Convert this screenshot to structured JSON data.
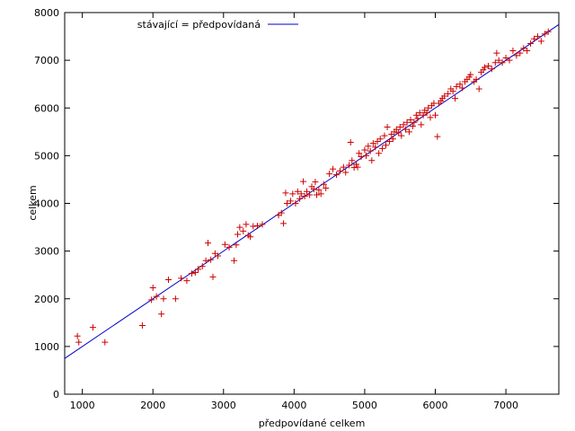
{
  "chart_data": {
    "type": "scatter",
    "title": "",
    "xlabel": "předpovídané celkem",
    "ylabel": "celkem",
    "xlim": [
      750,
      7750
    ],
    "ylim": [
      0,
      8000
    ],
    "x_ticks": [
      1000,
      2000,
      3000,
      4000,
      5000,
      6000,
      7000
    ],
    "y_ticks": [
      0,
      1000,
      2000,
      3000,
      4000,
      5000,
      6000,
      7000,
      8000
    ],
    "grid": false,
    "legend_position": "top-left",
    "colors": {
      "points": "#cc0000",
      "line": "#0000cc"
    },
    "line": {
      "name": "stávající = předpovídaná",
      "x": [
        750,
        7750
      ],
      "y": [
        750,
        7750
      ]
    },
    "points": [
      [
        930,
        1220
      ],
      [
        950,
        1090
      ],
      [
        1150,
        1400
      ],
      [
        1320,
        1090
      ],
      [
        1850,
        1440
      ],
      [
        1980,
        1980
      ],
      [
        2000,
        2230
      ],
      [
        2050,
        2050
      ],
      [
        2120,
        1680
      ],
      [
        2150,
        2000
      ],
      [
        2220,
        2400
      ],
      [
        2320,
        2000
      ],
      [
        2400,
        2430
      ],
      [
        2480,
        2380
      ],
      [
        2550,
        2530
      ],
      [
        2600,
        2550
      ],
      [
        2640,
        2620
      ],
      [
        2700,
        2680
      ],
      [
        2750,
        2800
      ],
      [
        2780,
        3170
      ],
      [
        2820,
        2820
      ],
      [
        2850,
        2460
      ],
      [
        2880,
        2950
      ],
      [
        2920,
        2900
      ],
      [
        3020,
        3140
      ],
      [
        3080,
        3080
      ],
      [
        3150,
        2800
      ],
      [
        3180,
        3130
      ],
      [
        3200,
        3350
      ],
      [
        3230,
        3500
      ],
      [
        3280,
        3420
      ],
      [
        3320,
        3560
      ],
      [
        3350,
        3330
      ],
      [
        3380,
        3300
      ],
      [
        3420,
        3520
      ],
      [
        3480,
        3530
      ],
      [
        3550,
        3560
      ],
      [
        3780,
        3750
      ],
      [
        3820,
        3800
      ],
      [
        3850,
        3580
      ],
      [
        3880,
        4220
      ],
      [
        3900,
        4000
      ],
      [
        3950,
        4050
      ],
      [
        3980,
        4200
      ],
      [
        4020,
        4000
      ],
      [
        4050,
        4250
      ],
      [
        4080,
        4100
      ],
      [
        4100,
        4200
      ],
      [
        4130,
        4460
      ],
      [
        4150,
        4150
      ],
      [
        4180,
        4250
      ],
      [
        4220,
        4180
      ],
      [
        4250,
        4350
      ],
      [
        4280,
        4300
      ],
      [
        4300,
        4450
      ],
      [
        4320,
        4180
      ],
      [
        4350,
        4280
      ],
      [
        4380,
        4200
      ],
      [
        4420,
        4400
      ],
      [
        4450,
        4320
      ],
      [
        4500,
        4620
      ],
      [
        4550,
        4720
      ],
      [
        4600,
        4600
      ],
      [
        4650,
        4680
      ],
      [
        4700,
        4760
      ],
      [
        4730,
        4650
      ],
      [
        4780,
        4800
      ],
      [
        4800,
        5280
      ],
      [
        4820,
        4900
      ],
      [
        4850,
        4750
      ],
      [
        4880,
        4820
      ],
      [
        4900,
        4760
      ],
      [
        4920,
        5050
      ],
      [
        4950,
        4980
      ],
      [
        5000,
        5120
      ],
      [
        5020,
        5000
      ],
      [
        5050,
        5200
      ],
      [
        5080,
        5100
      ],
      [
        5100,
        4900
      ],
      [
        5120,
        5260
      ],
      [
        5150,
        5180
      ],
      [
        5180,
        5300
      ],
      [
        5200,
        5050
      ],
      [
        5220,
        5350
      ],
      [
        5250,
        5150
      ],
      [
        5280,
        5420
      ],
      [
        5300,
        5220
      ],
      [
        5320,
        5600
      ],
      [
        5350,
        5300
      ],
      [
        5380,
        5450
      ],
      [
        5400,
        5350
      ],
      [
        5420,
        5500
      ],
      [
        5450,
        5550
      ],
      [
        5480,
        5480
      ],
      [
        5500,
        5600
      ],
      [
        5520,
        5420
      ],
      [
        5550,
        5650
      ],
      [
        5580,
        5550
      ],
      [
        5600,
        5700
      ],
      [
        5630,
        5500
      ],
      [
        5650,
        5750
      ],
      [
        5680,
        5620
      ],
      [
        5700,
        5700
      ],
      [
        5730,
        5850
      ],
      [
        5750,
        5780
      ],
      [
        5780,
        5900
      ],
      [
        5800,
        5650
      ],
      [
        5830,
        5850
      ],
      [
        5850,
        5950
      ],
      [
        5880,
        5900
      ],
      [
        5900,
        6000
      ],
      [
        5930,
        5800
      ],
      [
        5950,
        6050
      ],
      [
        5980,
        6100
      ],
      [
        6000,
        5850
      ],
      [
        6030,
        5400
      ],
      [
        6050,
        6100
      ],
      [
        6080,
        6150
      ],
      [
        6100,
        6200
      ],
      [
        6130,
        6250
      ],
      [
        6180,
        6300
      ],
      [
        6220,
        6400
      ],
      [
        6250,
        6350
      ],
      [
        6280,
        6200
      ],
      [
        6300,
        6450
      ],
      [
        6350,
        6500
      ],
      [
        6380,
        6420
      ],
      [
        6420,
        6550
      ],
      [
        6450,
        6600
      ],
      [
        6480,
        6650
      ],
      [
        6500,
        6700
      ],
      [
        6550,
        6550
      ],
      [
        6580,
        6600
      ],
      [
        6620,
        6400
      ],
      [
        6650,
        6750
      ],
      [
        6680,
        6800
      ],
      [
        6700,
        6850
      ],
      [
        6750,
        6880
      ],
      [
        6800,
        6820
      ],
      [
        6850,
        6950
      ],
      [
        6870,
        7150
      ],
      [
        6900,
        7000
      ],
      [
        6950,
        6950
      ],
      [
        7000,
        7050
      ],
      [
        7050,
        7000
      ],
      [
        7100,
        7200
      ],
      [
        7150,
        7100
      ],
      [
        7200,
        7150
      ],
      [
        7250,
        7250
      ],
      [
        7300,
        7200
      ],
      [
        7350,
        7350
      ],
      [
        7400,
        7450
      ],
      [
        7450,
        7500
      ],
      [
        7500,
        7400
      ],
      [
        7550,
        7550
      ],
      [
        7600,
        7600
      ]
    ]
  }
}
